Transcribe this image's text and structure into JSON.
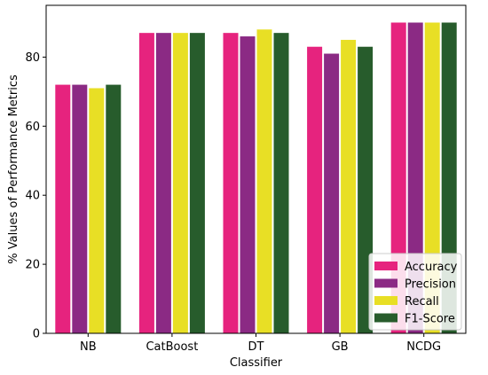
{
  "chart_data": {
    "type": "bar",
    "xlabel": "Classifier",
    "ylabel": "% Values of Performance Metrics",
    "categories": [
      "NB",
      "CatBoost",
      "DT",
      "GB",
      "NCDG"
    ],
    "ylim": [
      0,
      95
    ],
    "yticks": [
      0,
      20,
      40,
      60,
      80
    ],
    "grid": false,
    "legend_position": "lower-right",
    "series": [
      {
        "name": "Accuracy",
        "color": "#e6237e",
        "values": [
          72,
          87,
          87,
          83,
          90
        ]
      },
      {
        "name": "Precision",
        "color": "#8b2a84",
        "values": [
          72,
          87,
          86,
          81,
          90
        ]
      },
      {
        "name": "Recall",
        "color": "#e8df25",
        "values": [
          71,
          87,
          88,
          85,
          90
        ]
      },
      {
        "name": "F1-Score",
        "color": "#275c2c",
        "values": [
          72,
          87,
          87,
          83,
          90
        ]
      }
    ]
  }
}
